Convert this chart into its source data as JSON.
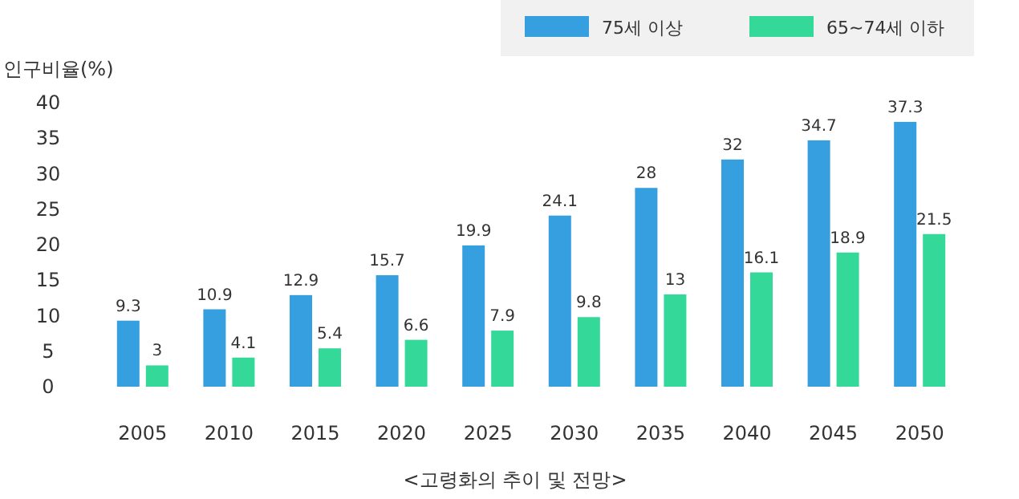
{
  "chart_data": {
    "type": "bar",
    "ylabel": "인구비율(%)",
    "categories": [
      "2005",
      "2010",
      "2015",
      "2020",
      "2025",
      "2030",
      "2035",
      "2040",
      "2045",
      "2050"
    ],
    "series": [
      {
        "name": "75세 이상",
        "color": "#359fdf",
        "values": [
          9.3,
          10.9,
          12.9,
          15.7,
          19.9,
          24.1,
          28,
          32,
          34.7,
          37.3
        ]
      },
      {
        "name": "65~74세 이하",
        "color": "#34d99a",
        "values": [
          3,
          4.1,
          5.4,
          6.6,
          7.9,
          9.8,
          13,
          16.1,
          18.9,
          21.5
        ]
      }
    ],
    "ylim": [
      0,
      40
    ],
    "yticks": [
      0,
      5,
      10,
      15,
      20,
      25,
      30,
      35,
      40
    ],
    "data_labels": true,
    "legend": "top right",
    "annotations": [
      "<고령화의 추이 및 전망>"
    ]
  }
}
